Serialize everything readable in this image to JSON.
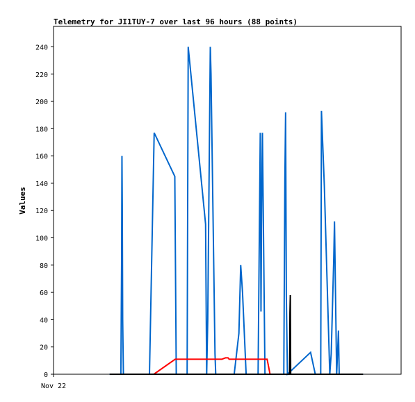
{
  "chart_data": {
    "type": "line",
    "title": "Telemetry for JI1TUY-7 over last 96 hours (88 points)",
    "ylabel": "Values",
    "xlabel": "",
    "x_tick_labels": [
      "Nov 22"
    ],
    "y_ticks": [
      0,
      20,
      40,
      60,
      80,
      100,
      120,
      140,
      160,
      180,
      200,
      220,
      240
    ],
    "ylim": [
      0,
      255
    ],
    "xlim": [
      0,
      96
    ],
    "grid": false,
    "legend": "none",
    "series": [
      {
        "color": "#0066cc",
        "points": [
          [
            15.5,
            0
          ],
          [
            18.6,
            0
          ],
          [
            18.8,
            80
          ],
          [
            18.9,
            160
          ],
          [
            19.0,
            120
          ],
          [
            19.1,
            40
          ],
          [
            19.3,
            0
          ],
          [
            26.5,
            0
          ],
          [
            27.8,
            177
          ],
          [
            33.5,
            145
          ],
          [
            33.9,
            0
          ],
          [
            36.9,
            0
          ],
          [
            37.2,
            240
          ],
          [
            42.0,
            110
          ],
          [
            42.3,
            0
          ],
          [
            42.6,
            40
          ],
          [
            43.3,
            240
          ],
          [
            43.5,
            220
          ],
          [
            44.6,
            15
          ],
          [
            44.8,
            0
          ],
          [
            49.9,
            0
          ],
          [
            51.2,
            30
          ],
          [
            51.7,
            80
          ],
          [
            52.2,
            60
          ],
          [
            53.2,
            0
          ],
          [
            56.5,
            0
          ],
          [
            57.1,
            177
          ],
          [
            57.3,
            46
          ],
          [
            57.5,
            133
          ],
          [
            57.7,
            177
          ],
          [
            58.4,
            0
          ],
          [
            63.6,
            0
          ],
          [
            63.9,
            143
          ],
          [
            64.1,
            192
          ],
          [
            64.3,
            58
          ],
          [
            64.6,
            0
          ],
          [
            71.0,
            16
          ],
          [
            72.3,
            0
          ],
          [
            73.8,
            0
          ],
          [
            74.0,
            193
          ],
          [
            74.8,
            138
          ],
          [
            76.3,
            0
          ],
          [
            76.7,
            15
          ],
          [
            77.4,
            85
          ],
          [
            77.6,
            112
          ],
          [
            78.2,
            0
          ],
          [
            78.7,
            32
          ],
          [
            78.9,
            0
          ],
          [
            85.5,
            0
          ]
        ]
      },
      {
        "color": "#ff0000",
        "points": [
          [
            27.7,
            0
          ],
          [
            33.6,
            11
          ],
          [
            46.5,
            11
          ],
          [
            47.5,
            12
          ],
          [
            48.2,
            12
          ],
          [
            48.5,
            11
          ],
          [
            59.0,
            11
          ],
          [
            59.8,
            0
          ],
          [
            61.0,
            0
          ]
        ]
      },
      {
        "color": "#000000",
        "points": [
          [
            15.5,
            0
          ],
          [
            65.2,
            0
          ],
          [
            65.3,
            45
          ],
          [
            65.4,
            58
          ],
          [
            65.5,
            0
          ],
          [
            85.5,
            0
          ]
        ]
      }
    ]
  }
}
